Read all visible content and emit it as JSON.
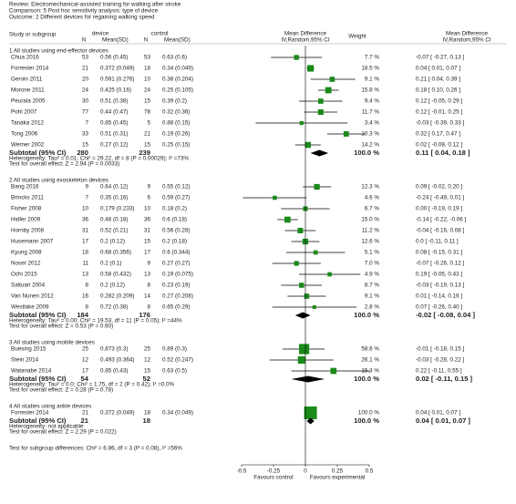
{
  "chart_data": {
    "type": "forest",
    "review": "Review:  Electromechanical-assisted training for walking after stroke",
    "comparison": "Comparison:  5 Post hoc sensitivity analysis: type of device",
    "outcome": "Outcome:  2 Different devices for regaining walking speed",
    "columns": {
      "study": "Study or subgroup",
      "device": "device",
      "device_n": "N",
      "device_mean": "Mean(SD)",
      "control": "control",
      "control_n": "N",
      "control_mean": "Mean(SD)",
      "effect": "Mean Difference",
      "effect_method": "IV,Random,95% CI",
      "weight": "Weight",
      "ci": "Mean Difference",
      "ci_method": "IV,Random,95% CI"
    },
    "color": "#1a8a1a",
    "xlim": [
      -0.5,
      0.5
    ],
    "xticks": [
      -0.5,
      -0.25,
      0,
      0.25,
      0.5
    ],
    "favours_left": "Favours control",
    "favours_right": "Favours experimental",
    "groups": [
      {
        "title": "1 All studies using end-effector devices",
        "studies": [
          {
            "name": "Chua 2016",
            "n1": 53,
            "mean1": "0.56 (0.45)",
            "n2": 53,
            "mean2": "0.63 (0.6)",
            "weight": 7.7,
            "weight_label": "7.7 %",
            "md": -0.07,
            "lo": -0.27,
            "hi": 0.13,
            "ci_label": "-0.07 [ -0.27, 0.13 ]"
          },
          {
            "name": "Forrester 2014",
            "n1": 21,
            "mean1": "0.372 (0.049)",
            "n2": 18,
            "mean2": "0.34 (0.049)",
            "weight": 18.5,
            "weight_label": "18.5 %",
            "md": 0.04,
            "lo": 0.01,
            "hi": 0.07,
            "ci_label": "0.04 [ 0.01, 0.07 ]"
          },
          {
            "name": "Geroin 2011",
            "n1": 20,
            "mean1": "0.591 (0.276)",
            "n2": 10,
            "mean2": "0.38 (0.204)",
            "weight": 9.1,
            "weight_label": "9.1 %",
            "md": 0.21,
            "lo": 0.04,
            "hi": 0.39,
            "ci_label": "0.21 [ 0.04, 0.39 ]"
          },
          {
            "name": "Morone 2011",
            "n1": 24,
            "mean1": "0.425 (0.16)",
            "n2": 24,
            "mean2": "0.25 (0.105)",
            "weight": 15.8,
            "weight_label": "15.8 %",
            "md": 0.18,
            "lo": 0.1,
            "hi": 0.26,
            "ci_label": "0.18 [ 0.10, 0.26 ]"
          },
          {
            "name": "Peurala 2005",
            "n1": 30,
            "mean1": "0.51 (0.38)",
            "n2": 15,
            "mean2": "0.39 (0.2)",
            "weight": 9.4,
            "weight_label": "9.4 %",
            "md": 0.12,
            "lo": -0.05,
            "hi": 0.29,
            "ci_label": "0.12 [ -0.05, 0.29 ]"
          },
          {
            "name": "Pohl 2007",
            "n1": 77,
            "mean1": "0.44 (0.47)",
            "n2": 78,
            "mean2": "0.32 (0.36)",
            "weight": 11.7,
            "weight_label": "11.7 %",
            "md": 0.12,
            "lo": -0.01,
            "hi": 0.25,
            "ci_label": "0.12 [ -0.01, 0.25 ]"
          },
          {
            "name": "Tanaka 2012",
            "n1": 7,
            "mean1": "0.85 (0.45)",
            "n2": 5,
            "mean2": "0.88 (0.15)",
            "weight": 3.4,
            "weight_label": "3.4 %",
            "md": -0.03,
            "lo": -0.39,
            "hi": 0.33,
            "ci_label": "-0.03 [ -0.39, 0.33 ]"
          },
          {
            "name": "Tong 2006",
            "n1": 33,
            "mean1": "0.51 (0.31)",
            "n2": 21,
            "mean2": "0.19 (0.26)",
            "weight": 10.3,
            "weight_label": "10.3 %",
            "md": 0.32,
            "lo": 0.17,
            "hi": 0.47,
            "ci_label": "0.32 [ 0.17, 0.47 ]"
          },
          {
            "name": "Werner 2002",
            "n1": 15,
            "mean1": "0.27 (0.12)",
            "n2": 15,
            "mean2": "0.25 (0.15)",
            "weight": 14.2,
            "weight_label": "14.2 %",
            "md": 0.02,
            "lo": -0.08,
            "hi": 0.12,
            "ci_label": "0.02 [ -0.08, 0.12 ]"
          }
        ],
        "subtotal": {
          "label": "Subtotal (95% CI)",
          "n1": 280,
          "n2": 239,
          "weight_label": "100.0 %",
          "md": 0.11,
          "lo": 0.04,
          "hi": 0.18,
          "ci_label": "0.11 [ 0.04, 0.18 ]"
        },
        "heterogeneity": "Heterogeneity: Tau² = 0.01; Chi² = 29.22, df = 8 (P = 0.00029); I² =73%",
        "overall": "Test for overall effect: Z = 2.94 (P = 0.0033)"
      },
      {
        "title": "2 All studies using exoskeleton devices",
        "studies": [
          {
            "name": "Bang 2016",
            "n1": 9,
            "mean1": "0.64 (0.12)",
            "n2": 9,
            "mean2": "0.55 (0.12)",
            "weight": 12.3,
            "weight_label": "12.3 %",
            "md": 0.09,
            "lo": -0.02,
            "hi": 0.2,
            "ci_label": "0.09 [ -0.02, 0.20 ]"
          },
          {
            "name": "Brincks 2011",
            "n1": 7,
            "mean1": "0.35 (0.16)",
            "n2": 6,
            "mean2": "0.59 (0.27)",
            "weight": 4.6,
            "weight_label": "4.6 %",
            "md": -0.24,
            "lo": -0.49,
            "hi": 0.01,
            "ci_label": "-0.24 [ -0.49, 0.01 ]"
          },
          {
            "name": "Fisher 2008",
            "n1": 10,
            "mean1": "0.179 (0.233)",
            "n2": 10,
            "mean2": "0.18 (0.2)",
            "weight": 6.7,
            "weight_label": "6.7 %",
            "md": 0.0,
            "lo": -0.19,
            "hi": 0.19,
            "ci_label": "0.00 [ -0.19, 0.19 ]"
          },
          {
            "name": "Hidler 2009",
            "n1": 36,
            "mean1": "0.46 (0.18)",
            "n2": 36,
            "mean2": "0.6 (0.18)",
            "weight": 15.0,
            "weight_label": "15.0 %",
            "md": -0.14,
            "lo": -0.22,
            "hi": -0.06,
            "ci_label": "-0.14 [ -0.22, -0.06 ]"
          },
          {
            "name": "Hornby 2008",
            "n1": 31,
            "mean1": "0.52 (0.21)",
            "n2": 31,
            "mean2": "0.56 (0.28)",
            "weight": 11.2,
            "weight_label": "11.2 %",
            "md": -0.04,
            "lo": -0.16,
            "hi": 0.08,
            "ci_label": "-0.04 [ -0.16, 0.08 ]"
          },
          {
            "name": "Husemann 2007",
            "n1": 17,
            "mean1": "0.2 (0.12)",
            "n2": 15,
            "mean2": "0.2 (0.18)",
            "weight": 12.6,
            "weight_label": "12.6 %",
            "md": 0.0,
            "lo": -0.11,
            "hi": 0.11,
            "ci_label": "0.0 [ -0.11, 0.11 ]"
          },
          {
            "name": "Kyung 2008",
            "n1": 18,
            "mean1": "0.68 (0.356)",
            "n2": 17,
            "mean2": "0.6 (0.344)",
            "weight": 5.1,
            "weight_label": "5.1 %",
            "md": 0.08,
            "lo": -0.15,
            "hi": 0.31,
            "ci_label": "0.08 [ -0.15, 0.31 ]"
          },
          {
            "name": "Noser 2012",
            "n1": 11,
            "mean1": "0.2 (0.1)",
            "n2": 9,
            "mean2": "0.27 (0.27)",
            "weight": 7.0,
            "weight_label": "7.0 %",
            "md": -0.07,
            "lo": -0.26,
            "hi": 0.12,
            "ci_label": "-0.07 [ -0.26, 0.12 ]"
          },
          {
            "name": "Ochi 2015",
            "n1": 13,
            "mean1": "0.58 (0.432)",
            "n2": 13,
            "mean2": "0.19 (0.075)",
            "weight": 4.9,
            "weight_label": "4.9 %",
            "md": 0.19,
            "lo": -0.05,
            "hi": 0.43,
            "ci_label": "0.19 [ -0.05, 0.43 ]"
          },
          {
            "name": "Saltuari 2004",
            "n1": 8,
            "mean1": "0.2 (0.12)",
            "n2": 8,
            "mean2": "0.23 (0.19)",
            "weight": 8.7,
            "weight_label": "8.7 %",
            "md": -0.03,
            "lo": -0.19,
            "hi": 0.13,
            "ci_label": "-0.03 [ -0.19, 0.13 ]"
          },
          {
            "name": "Van Nunen 2012",
            "n1": 16,
            "mean1": "0.282 (0.209)",
            "n2": 14,
            "mean2": "0.27 (0.208)",
            "weight": 9.1,
            "weight_label": "9.1 %",
            "md": 0.01,
            "lo": -0.14,
            "hi": 0.16,
            "ci_label": "0.01 [ -0.14, 0.16 ]"
          },
          {
            "name": "Westlake 2009",
            "n1": 8,
            "mean1": "0.72 (0.38)",
            "n2": 8,
            "mean2": "0.65 (0.29)",
            "weight": 2.8,
            "weight_label": "2.8 %",
            "md": 0.07,
            "lo": -0.26,
            "hi": 0.4,
            "ci_label": "0.07 [ -0.26, 0.40 ]"
          }
        ],
        "subtotal": {
          "label": "Subtotal (95% CI)",
          "n1": 184,
          "n2": 176,
          "weight_label": "100.0 %",
          "md": -0.02,
          "lo": -0.08,
          "hi": 0.04,
          "ci_label": "-0.02 [ -0.08, 0.04 ]"
        },
        "heterogeneity": "Heterogeneity: Tau² = 0.00; Chi² = 19.53, df = 11 (P = 0.05); I² =44%",
        "overall": "Test for overall effect: Z = 0.53 (P = 0.60)"
      },
      {
        "title": "3 All studies using mobile devices",
        "studies": [
          {
            "name": "Buesing 2015",
            "n1": 25,
            "mean1": "0.873 (0.3)",
            "n2": 25,
            "mean2": "0.89 (0.3)",
            "weight": 58.6,
            "weight_label": "58.6 %",
            "md": -0.01,
            "lo": -0.18,
            "hi": 0.15,
            "ci_label": "-0.01 [ -0.18, 0.15 ]"
          },
          {
            "name": "Stein 2014",
            "n1": 12,
            "mean1": "0.493 (0.364)",
            "n2": 12,
            "mean2": "0.52 (0.247)",
            "weight": 26.1,
            "weight_label": "26.1 %",
            "md": -0.03,
            "lo": -0.28,
            "hi": 0.22,
            "ci_label": "-0.03 [ -0.28, 0.22 ]"
          },
          {
            "name": "Watanabe 2014",
            "n1": 17,
            "mean1": "0.85 (0.43)",
            "n2": 15,
            "mean2": "0.63 (0.5)",
            "weight": 15.3,
            "weight_label": "15.3 %",
            "md": 0.22,
            "lo": -0.11,
            "hi": 0.55,
            "ci_label": "0.22 [ -0.11, 0.55 ]"
          }
        ],
        "subtotal": {
          "label": "Subtotal (95% CI)",
          "n1": 54,
          "n2": 52,
          "weight_label": "100.0 %",
          "md": 0.02,
          "lo": -0.11,
          "hi": 0.15,
          "ci_label": "0.02 [ -0.11, 0.15 ]"
        },
        "heterogeneity": "Heterogeneity: Tau² = 0.0; Chi² = 1.75, df = 2 (P = 0.42); I² =0.0%",
        "overall": "Test for overall effect: Z = 0.28 (P = 0.78)"
      },
      {
        "title": "4 All studies using ankle devices",
        "studies": [
          {
            "name": "Forrester 2014",
            "n1": 21,
            "mean1": "0.372 (0.049)",
            "n2": 18,
            "mean2": "0.34 (0.049)",
            "weight": 100.0,
            "weight_label": "100.0 %",
            "md": 0.04,
            "lo": 0.01,
            "hi": 0.07,
            "ci_label": "0.04 [ 0.01, 0.07 ]"
          }
        ],
        "subtotal": {
          "label": "Subtotal (95% CI)",
          "n1": 21,
          "n2": 18,
          "weight_label": "100.0 %",
          "md": 0.04,
          "lo": 0.01,
          "hi": 0.07,
          "ci_label": "0.04 [ 0.01, 0.07 ]"
        },
        "heterogeneity": "Heterogeneity: not applicable",
        "overall": "Test for overall effect: Z = 2.29 (P = 0.022)"
      }
    ],
    "subgroup_test": "Test for subgroup differences: Chi² = 6.86, df = 3 (P = 0.08), I² =56%"
  }
}
